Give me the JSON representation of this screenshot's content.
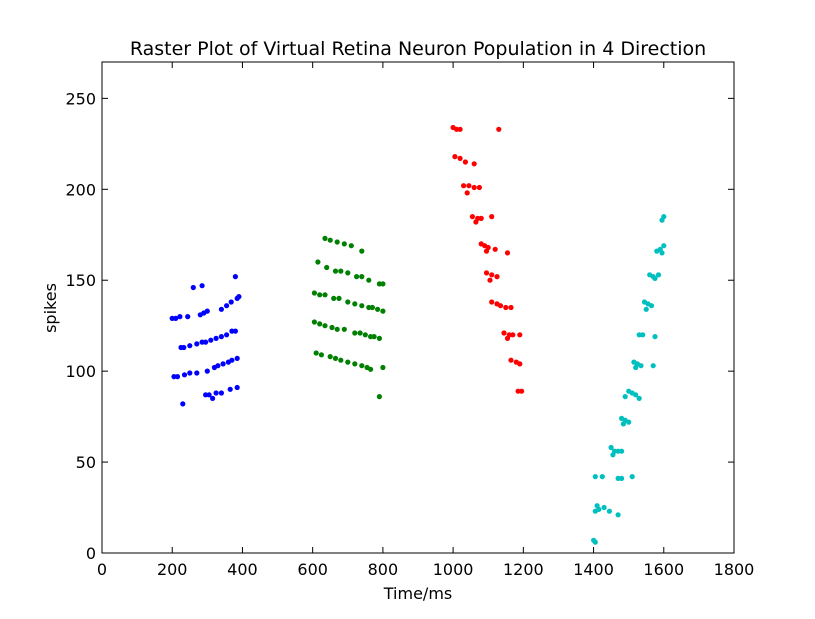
{
  "chart_data": {
    "type": "scatter",
    "title": "Raster Plot of Virtual Retina Neuron Population in 4 Direction",
    "xlabel": "Time/ms",
    "ylabel": "spikes",
    "xlim": [
      0,
      1800
    ],
    "ylim": [
      0,
      270
    ],
    "xticks": [
      0,
      200,
      400,
      600,
      800,
      1000,
      1200,
      1400,
      1600,
      1800
    ],
    "yticks": [
      0,
      50,
      100,
      150,
      200,
      250
    ],
    "grid": false,
    "legend": "none",
    "series": [
      {
        "color": "#0000ff",
        "points": [
          [
            200,
            129
          ],
          [
            210,
            129
          ],
          [
            222,
            130
          ],
          [
            244,
            130
          ],
          [
            280,
            131
          ],
          [
            290,
            132
          ],
          [
            300,
            133
          ],
          [
            340,
            134
          ],
          [
            355,
            136
          ],
          [
            368,
            138
          ],
          [
            385,
            140
          ],
          [
            390,
            141
          ],
          [
            380,
            152
          ],
          [
            260,
            146
          ],
          [
            285,
            147
          ],
          [
            225,
            113
          ],
          [
            233,
            113
          ],
          [
            250,
            114
          ],
          [
            270,
            115
          ],
          [
            285,
            116
          ],
          [
            295,
            116
          ],
          [
            310,
            117
          ],
          [
            325,
            118
          ],
          [
            340,
            119
          ],
          [
            355,
            120
          ],
          [
            370,
            122
          ],
          [
            380,
            122
          ],
          [
            205,
            97
          ],
          [
            215,
            97
          ],
          [
            235,
            98
          ],
          [
            250,
            99
          ],
          [
            270,
            99
          ],
          [
            300,
            100
          ],
          [
            320,
            102
          ],
          [
            330,
            103
          ],
          [
            345,
            104
          ],
          [
            360,
            105
          ],
          [
            370,
            106
          ],
          [
            385,
            107
          ],
          [
            295,
            87
          ],
          [
            305,
            87
          ],
          [
            325,
            88
          ],
          [
            340,
            88
          ],
          [
            365,
            90
          ],
          [
            385,
            91
          ],
          [
            315,
            85
          ],
          [
            230,
            82
          ]
        ]
      },
      {
        "color": "#008000",
        "points": [
          [
            635,
            173
          ],
          [
            650,
            172
          ],
          [
            670,
            171
          ],
          [
            690,
            170
          ],
          [
            710,
            169
          ],
          [
            740,
            166
          ],
          [
            615,
            160
          ],
          [
            640,
            157
          ],
          [
            665,
            155
          ],
          [
            680,
            155
          ],
          [
            700,
            154
          ],
          [
            725,
            152
          ],
          [
            740,
            152
          ],
          [
            760,
            150
          ],
          [
            790,
            148
          ],
          [
            800,
            148
          ],
          [
            605,
            143
          ],
          [
            620,
            142
          ],
          [
            635,
            142
          ],
          [
            660,
            140
          ],
          [
            675,
            140
          ],
          [
            700,
            138
          ],
          [
            720,
            137
          ],
          [
            740,
            136
          ],
          [
            760,
            135
          ],
          [
            770,
            135
          ],
          [
            785,
            134
          ],
          [
            800,
            133
          ],
          [
            605,
            127
          ],
          [
            620,
            126
          ],
          [
            635,
            125
          ],
          [
            655,
            124
          ],
          [
            670,
            123
          ],
          [
            690,
            123
          ],
          [
            720,
            121
          ],
          [
            735,
            121
          ],
          [
            750,
            120
          ],
          [
            765,
            119
          ],
          [
            775,
            119
          ],
          [
            790,
            118
          ],
          [
            610,
            110
          ],
          [
            625,
            109
          ],
          [
            650,
            108
          ],
          [
            665,
            107
          ],
          [
            680,
            106
          ],
          [
            700,
            105
          ],
          [
            720,
            104
          ],
          [
            740,
            103
          ],
          [
            755,
            102
          ],
          [
            765,
            101
          ],
          [
            800,
            102
          ],
          [
            790,
            86
          ]
        ]
      },
      {
        "color": "#ff0000",
        "points": [
          [
            1000,
            234
          ],
          [
            1010,
            233
          ],
          [
            1020,
            233
          ],
          [
            1130,
            233
          ],
          [
            1005,
            218
          ],
          [
            1020,
            217
          ],
          [
            1035,
            215
          ],
          [
            1060,
            214
          ],
          [
            1030,
            202
          ],
          [
            1045,
            202
          ],
          [
            1060,
            201
          ],
          [
            1075,
            201
          ],
          [
            1040,
            198
          ],
          [
            1055,
            185
          ],
          [
            1070,
            184
          ],
          [
            1080,
            184
          ],
          [
            1110,
            185
          ],
          [
            1065,
            182
          ],
          [
            1080,
            170
          ],
          [
            1090,
            169
          ],
          [
            1100,
            168
          ],
          [
            1095,
            166
          ],
          [
            1120,
            167
          ],
          [
            1155,
            165
          ],
          [
            1095,
            154
          ],
          [
            1110,
            153
          ],
          [
            1125,
            152
          ],
          [
            1105,
            150
          ],
          [
            1110,
            138
          ],
          [
            1125,
            137
          ],
          [
            1135,
            136
          ],
          [
            1150,
            135
          ],
          [
            1165,
            135
          ],
          [
            1145,
            121
          ],
          [
            1160,
            120
          ],
          [
            1170,
            120
          ],
          [
            1190,
            120
          ],
          [
            1155,
            118
          ],
          [
            1165,
            106
          ],
          [
            1180,
            105
          ],
          [
            1190,
            104
          ],
          [
            1185,
            89
          ],
          [
            1195,
            89
          ]
        ]
      },
      {
        "color": "#00bfbf",
        "points": [
          [
            1600,
            185
          ],
          [
            1595,
            183
          ],
          [
            1580,
            166
          ],
          [
            1590,
            167
          ],
          [
            1600,
            169
          ],
          [
            1595,
            165
          ],
          [
            1560,
            153
          ],
          [
            1570,
            152
          ],
          [
            1585,
            153
          ],
          [
            1575,
            151
          ],
          [
            1545,
            138
          ],
          [
            1555,
            137
          ],
          [
            1565,
            136
          ],
          [
            1550,
            134
          ],
          [
            1530,
            120
          ],
          [
            1540,
            120
          ],
          [
            1575,
            119
          ],
          [
            1515,
            105
          ],
          [
            1525,
            104
          ],
          [
            1535,
            103
          ],
          [
            1520,
            102
          ],
          [
            1570,
            103
          ],
          [
            1500,
            89
          ],
          [
            1510,
            88
          ],
          [
            1520,
            87
          ],
          [
            1490,
            86
          ],
          [
            1530,
            85
          ],
          [
            1480,
            74
          ],
          [
            1490,
            73
          ],
          [
            1500,
            72
          ],
          [
            1485,
            71
          ],
          [
            1450,
            58
          ],
          [
            1460,
            56
          ],
          [
            1470,
            56
          ],
          [
            1480,
            56
          ],
          [
            1455,
            54
          ],
          [
            1405,
            42
          ],
          [
            1425,
            42
          ],
          [
            1470,
            41
          ],
          [
            1480,
            41
          ],
          [
            1510,
            42
          ],
          [
            1410,
            26
          ],
          [
            1405,
            23
          ],
          [
            1415,
            24
          ],
          [
            1430,
            25
          ],
          [
            1445,
            23
          ],
          [
            1470,
            21
          ],
          [
            1400,
            7
          ],
          [
            1405,
            6
          ]
        ]
      }
    ]
  }
}
